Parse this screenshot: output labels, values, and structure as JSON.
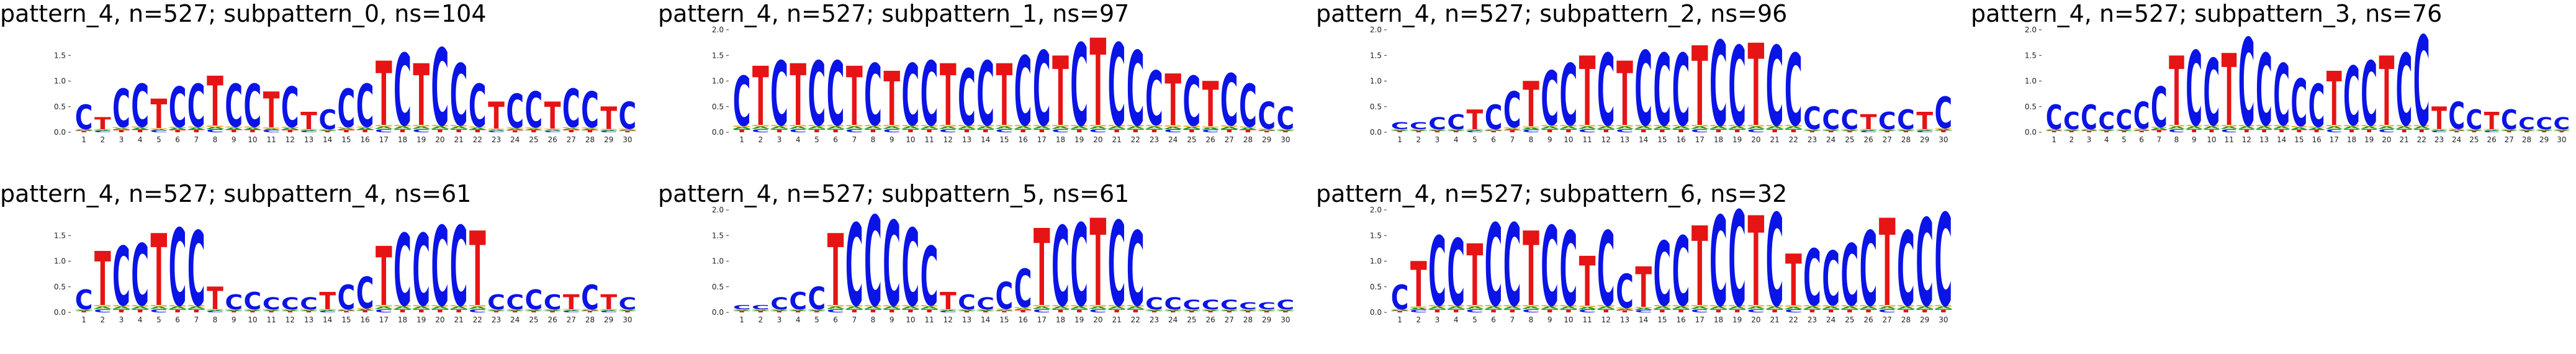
{
  "colors": {
    "C": "#0a14e6",
    "T": "#e61414",
    "A": "#1a9a1a",
    "G": "#f0a000"
  },
  "chart_data": [
    {
      "type": "sequence-logo",
      "title": "pattern_4, n=527; subpattern_0, ns=104",
      "ylim": [
        0,
        2.0
      ],
      "yticks": [
        "0.0",
        "0.5",
        "1.0",
        "1.5"
      ],
      "positions": [
        "1",
        "2",
        "3",
        "4",
        "5",
        "6",
        "7",
        "8",
        "9",
        "10",
        "11",
        "12",
        "13",
        "14",
        "15",
        "16",
        "17",
        "18",
        "19",
        "20",
        "21",
        "22",
        "23",
        "24",
        "25",
        "26",
        "27",
        "28",
        "29",
        "30"
      ],
      "dominant_base": [
        "C",
        "T",
        "C",
        "C",
        "T",
        "C",
        "C",
        "T",
        "C",
        "C",
        "T",
        "C",
        "T",
        "C",
        "C",
        "C",
        "T",
        "C",
        "T",
        "C",
        "C",
        "C",
        "T",
        "C",
        "C",
        "T",
        "C",
        "C",
        "T",
        "C"
      ],
      "height": [
        0.55,
        0.3,
        0.85,
        0.95,
        0.65,
        0.9,
        0.95,
        1.1,
        0.95,
        0.95,
        0.8,
        0.9,
        0.4,
        0.45,
        0.85,
        0.95,
        1.4,
        1.55,
        1.35,
        1.65,
        1.35,
        0.95,
        0.6,
        0.75,
        0.8,
        0.6,
        0.85,
        0.8,
        0.5,
        0.6
      ]
    },
    {
      "type": "sequence-logo",
      "title": "pattern_4, n=527; subpattern_1, ns=97",
      "ylim": [
        0,
        2.0
      ],
      "yticks": [
        "0.0",
        "0.5",
        "1.0",
        "1.5",
        "2.0"
      ],
      "positions": [
        "1",
        "2",
        "3",
        "4",
        "5",
        "6",
        "7",
        "8",
        "9",
        "10",
        "11",
        "12",
        "13",
        "14",
        "15",
        "16",
        "17",
        "18",
        "19",
        "20",
        "21",
        "22",
        "23",
        "24",
        "25",
        "26",
        "27",
        "28",
        "29",
        "30"
      ],
      "dominant_base": [
        "C",
        "T",
        "C",
        "T",
        "C",
        "C",
        "T",
        "C",
        "T",
        "C",
        "C",
        "T",
        "C",
        "C",
        "T",
        "C",
        "C",
        "T",
        "C",
        "T",
        "C",
        "C",
        "C",
        "T",
        "C",
        "T",
        "C",
        "C",
        "C",
        "C"
      ],
      "height": [
        1.1,
        1.3,
        1.4,
        1.35,
        1.4,
        1.4,
        1.3,
        1.35,
        1.2,
        1.35,
        1.4,
        1.35,
        1.25,
        1.4,
        1.35,
        1.5,
        1.6,
        1.5,
        1.75,
        1.85,
        1.75,
        1.6,
        1.2,
        1.15,
        1.1,
        1.0,
        1.15,
        0.95,
        0.6,
        0.5
      ]
    },
    {
      "type": "sequence-logo",
      "title": "pattern_4, n=527; subpattern_2, ns=96",
      "ylim": [
        0,
        2.0
      ],
      "yticks": [
        "0.0",
        "0.5",
        "1.0",
        "1.5",
        "2.0"
      ],
      "positions": [
        "1",
        "2",
        "3",
        "4",
        "5",
        "6",
        "7",
        "8",
        "9",
        "10",
        "11",
        "12",
        "13",
        "14",
        "15",
        "16",
        "17",
        "18",
        "19",
        "20",
        "21",
        "22",
        "23",
        "24",
        "25",
        "26",
        "27",
        "28",
        "29",
        "30"
      ],
      "dominant_base": [
        "C",
        "C",
        "C",
        "C",
        "T",
        "C",
        "C",
        "T",
        "C",
        "C",
        "T",
        "C",
        "T",
        "C",
        "C",
        "C",
        "T",
        "C",
        "C",
        "T",
        "C",
        "C",
        "C",
        "C",
        "C",
        "T",
        "C",
        "C",
        "T",
        "C"
      ],
      "height": [
        0.2,
        0.2,
        0.3,
        0.35,
        0.45,
        0.55,
        0.8,
        1.0,
        1.2,
        1.35,
        1.5,
        1.55,
        1.4,
        1.6,
        1.55,
        1.55,
        1.7,
        1.8,
        1.7,
        1.75,
        1.7,
        1.55,
        0.5,
        0.45,
        0.45,
        0.35,
        0.4,
        0.45,
        0.4,
        0.7
      ]
    },
    {
      "type": "sequence-logo",
      "title": "pattern_4, n=527; subpattern_3, ns=76",
      "ylim": [
        0,
        2.0
      ],
      "yticks": [
        "0.0",
        "0.5",
        "1.0",
        "1.5",
        "2.0"
      ],
      "positions": [
        "1",
        "2",
        "3",
        "4",
        "5",
        "6",
        "7",
        "8",
        "9",
        "10",
        "11",
        "12",
        "13",
        "14",
        "15",
        "16",
        "17",
        "18",
        "19",
        "20",
        "21",
        "22",
        "23",
        "24",
        "25",
        "26",
        "27",
        "28",
        "29",
        "30"
      ],
      "dominant_base": [
        "C",
        "C",
        "C",
        "C",
        "C",
        "C",
        "C",
        "T",
        "C",
        "C",
        "T",
        "C",
        "C",
        "C",
        "C",
        "C",
        "T",
        "C",
        "C",
        "T",
        "C",
        "C",
        "T",
        "C",
        "C",
        "T",
        "C",
        "C",
        "C",
        "C"
      ],
      "height": [
        0.55,
        0.4,
        0.55,
        0.4,
        0.45,
        0.6,
        0.9,
        1.5,
        1.6,
        1.45,
        1.55,
        1.85,
        1.55,
        1.35,
        1.05,
        0.95,
        1.2,
        1.3,
        1.4,
        1.5,
        1.55,
        1.9,
        0.5,
        0.6,
        0.45,
        0.4,
        0.45,
        0.3,
        0.3,
        0.3
      ]
    },
    {
      "type": "sequence-logo",
      "title": "pattern_4, n=527; subpattern_4, ns=61",
      "ylim": [
        0,
        2.0
      ],
      "yticks": [
        "0.0",
        "0.5",
        "1.0",
        "1.5"
      ],
      "positions": [
        "1",
        "2",
        "3",
        "4",
        "5",
        "6",
        "7",
        "8",
        "9",
        "10",
        "11",
        "12",
        "13",
        "14",
        "15",
        "16",
        "17",
        "18",
        "19",
        "20",
        "21",
        "22",
        "23",
        "24",
        "25",
        "26",
        "27",
        "28",
        "29",
        "30"
      ],
      "dominant_base": [
        "C",
        "T",
        "C",
        "C",
        "T",
        "C",
        "C",
        "T",
        "C",
        "C",
        "C",
        "C",
        "C",
        "T",
        "C",
        "C",
        "T",
        "C",
        "C",
        "C",
        "C",
        "T",
        "C",
        "C",
        "C",
        "C",
        "T",
        "C",
        "T",
        "C"
      ],
      "height": [
        0.45,
        1.2,
        1.3,
        1.35,
        1.55,
        1.65,
        1.6,
        0.5,
        0.35,
        0.4,
        0.3,
        0.3,
        0.3,
        0.4,
        0.55,
        0.7,
        1.3,
        1.55,
        1.55,
        1.7,
        1.7,
        1.6,
        0.35,
        0.35,
        0.45,
        0.35,
        0.35,
        0.55,
        0.35,
        0.3
      ]
    },
    {
      "type": "sequence-logo",
      "title": "pattern_4, n=527; subpattern_5, ns=61",
      "ylim": [
        0,
        2.0
      ],
      "yticks": [
        "0.0",
        "0.5",
        "1.0",
        "1.5",
        "2.0"
      ],
      "positions": [
        "1",
        "2",
        "3",
        "4",
        "5",
        "6",
        "7",
        "8",
        "9",
        "10",
        "11",
        "12",
        "13",
        "14",
        "15",
        "16",
        "17",
        "18",
        "19",
        "20",
        "21",
        "22",
        "23",
        "24",
        "25",
        "26",
        "27",
        "28",
        "29",
        "30"
      ],
      "dominant_base": [
        "C",
        "C",
        "C",
        "C",
        "C",
        "T",
        "C",
        "C",
        "C",
        "C",
        "C",
        "T",
        "C",
        "C",
        "C",
        "C",
        "T",
        "C",
        "C",
        "T",
        "C",
        "C",
        "C",
        "C",
        "C",
        "C",
        "C",
        "C",
        "C",
        "C"
      ],
      "height": [
        0.15,
        0.15,
        0.3,
        0.4,
        0.5,
        1.55,
        1.75,
        1.9,
        1.8,
        1.65,
        1.3,
        0.4,
        0.35,
        0.3,
        0.6,
        0.85,
        1.65,
        1.7,
        1.75,
        1.85,
        1.8,
        1.6,
        0.3,
        0.3,
        0.25,
        0.25,
        0.25,
        0.2,
        0.2,
        0.25
      ]
    },
    {
      "type": "sequence-logo",
      "title": "pattern_4, n=527; subpattern_6, ns=32",
      "ylim": [
        0,
        2.0
      ],
      "yticks": [
        "0.0",
        "0.5",
        "1.0",
        "1.5",
        "2.0"
      ],
      "positions": [
        "1",
        "2",
        "3",
        "4",
        "5",
        "6",
        "7",
        "8",
        "9",
        "10",
        "11",
        "12",
        "13",
        "14",
        "15",
        "16",
        "17",
        "18",
        "19",
        "20",
        "21",
        "22",
        "23",
        "24",
        "25",
        "26",
        "27",
        "28",
        "29",
        "30"
      ],
      "dominant_base": [
        "C",
        "T",
        "C",
        "C",
        "T",
        "C",
        "C",
        "T",
        "C",
        "C",
        "T",
        "C",
        "C",
        "T",
        "C",
        "C",
        "T",
        "C",
        "C",
        "T",
        "C",
        "T",
        "C",
        "C",
        "C",
        "C",
        "T",
        "C",
        "C",
        "C"
      ],
      "height": [
        0.55,
        1.0,
        1.5,
        1.45,
        1.35,
        1.75,
        1.75,
        1.6,
        1.7,
        1.6,
        1.1,
        1.6,
        0.75,
        0.9,
        1.4,
        1.5,
        1.7,
        1.9,
        2.0,
        1.9,
        1.95,
        1.15,
        1.25,
        1.2,
        1.35,
        1.6,
        1.85,
        1.6,
        1.85,
        1.95
      ]
    }
  ]
}
